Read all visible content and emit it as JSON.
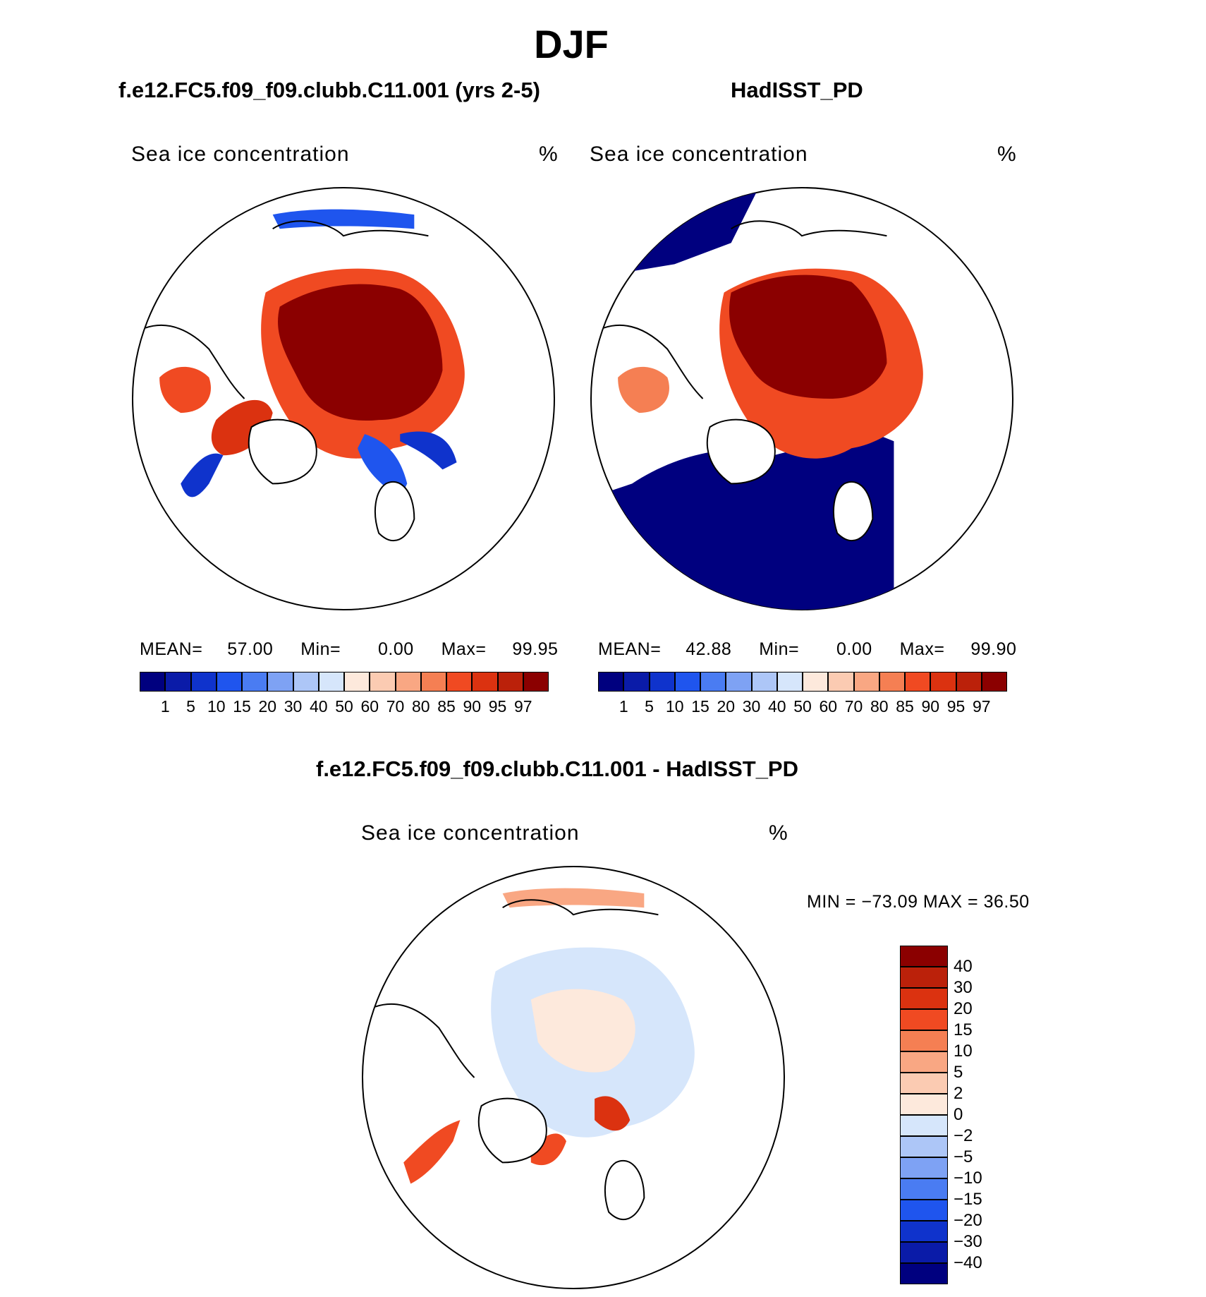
{
  "title": "DJF",
  "colors": {
    "ocean_ice_max": "#8b0000",
    "open_water": "#00008b",
    "continent_line": "#000000"
  },
  "panels": [
    {
      "title": "f.e12.FC5.f09_f09.clubb.C11.001 (yrs 2-5)",
      "variable": "Sea ice concentration",
      "units": "%",
      "stats": {
        "mean_label": "MEAN=",
        "mean": "57.00",
        "min_label": "Min=",
        "min": "0.00",
        "max_label": "Max=",
        "max": "99.95"
      }
    },
    {
      "title": "HadISST_PD",
      "variable": "Sea ice concentration",
      "units": "%",
      "stats": {
        "mean_label": "MEAN=",
        "mean": "42.88",
        "min_label": "Min=",
        "min": "0.00",
        "max_label": "Max=",
        "max": "99.90"
      }
    }
  ],
  "diff_panel": {
    "title": "f.e12.FC5.f09_f09.clubb.C11.001 - HadISST_PD",
    "variable": "Sea ice concentration",
    "units": "%",
    "minmax": "MIN = −73.09 MAX =   36.50"
  },
  "colorbar_h": {
    "levels": [
      "1",
      "5",
      "10",
      "15",
      "20",
      "30",
      "40",
      "50",
      "60",
      "70",
      "80",
      "85",
      "90",
      "95",
      "97"
    ],
    "colors": [
      "#00007f",
      "#0a1ba8",
      "#0f33cc",
      "#1f55ee",
      "#4a7cf2",
      "#7ea2f4",
      "#adc6f7",
      "#d6e6fb",
      "#fde9dc",
      "#fbcbb2",
      "#f9a783",
      "#f57f53",
      "#f04a22",
      "#db3210",
      "#bb210a",
      "#8b0000"
    ]
  },
  "colorbar_v": {
    "levels": [
      "40",
      "30",
      "20",
      "15",
      "10",
      "5",
      "2",
      "0",
      "−2",
      "−5",
      "−10",
      "−15",
      "−20",
      "−30",
      "−40"
    ],
    "colors": [
      "#8b0000",
      "#bb210a",
      "#db3210",
      "#f04a22",
      "#f57f53",
      "#f9a783",
      "#fbcbb2",
      "#fde9dc",
      "#d6e6fb",
      "#adc6f7",
      "#7ea2f4",
      "#4a7cf2",
      "#1f55ee",
      "#0f33cc",
      "#0a1ba8",
      "#00007f"
    ]
  }
}
